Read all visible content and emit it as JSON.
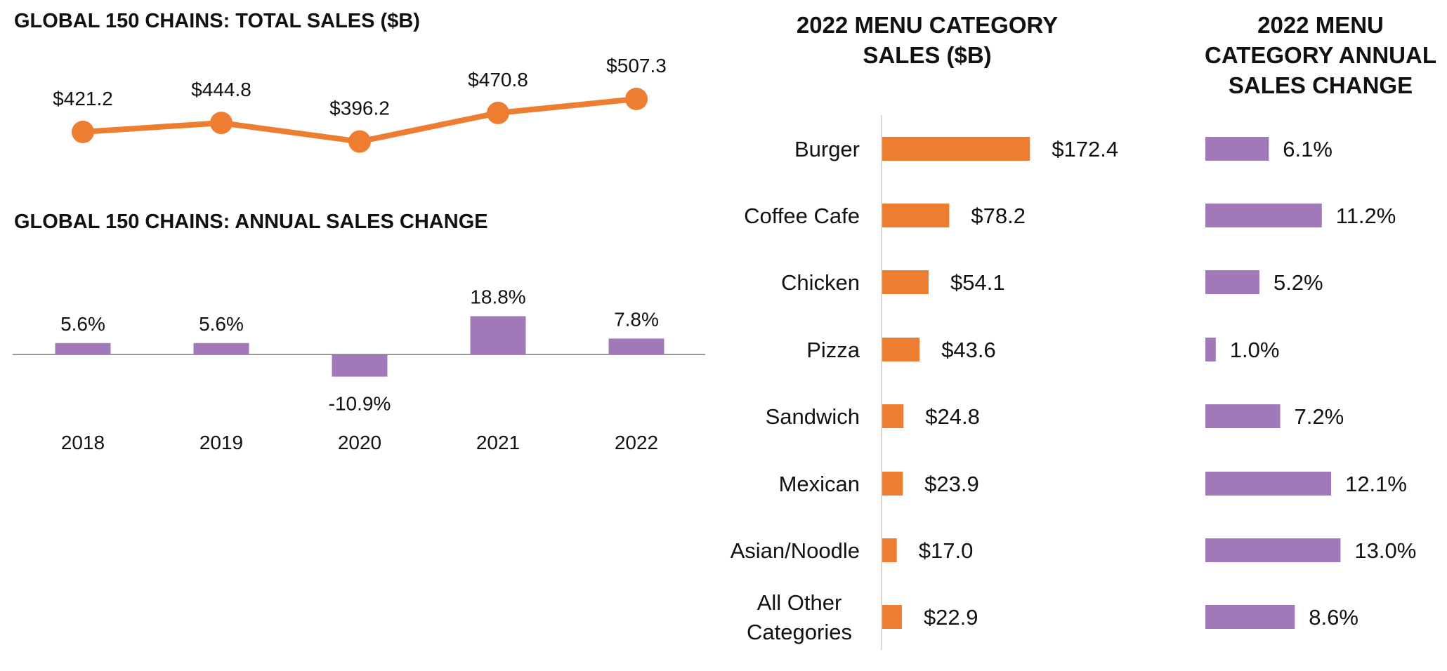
{
  "colors": {
    "orange": "#ED7D31",
    "purple": "#A279B8",
    "axis": "#9A9A9A",
    "axis_light": "#D9D9D9",
    "text": "#111111"
  },
  "chart_data": [
    {
      "id": "total-sales",
      "type": "line",
      "title": "GLOBAL 150 CHAINS: TOTAL SALES ($B)",
      "x": [
        "2018",
        "2019",
        "2020",
        "2021",
        "2022"
      ],
      "values": [
        421.2,
        444.8,
        396.2,
        470.8,
        507.3
      ],
      "labels": [
        "$421.2",
        "$444.8",
        "$396.2",
        "$470.8",
        "$507.3"
      ],
      "xlabel": "",
      "ylabel": "",
      "grid": false,
      "legend": "none"
    },
    {
      "id": "annual-change",
      "type": "bar",
      "title": "GLOBAL 150 CHAINS: ANNUAL SALES CHANGE",
      "categories": [
        "2018",
        "2019",
        "2020",
        "2021",
        "2022"
      ],
      "values": [
        5.6,
        5.6,
        -10.9,
        18.8,
        7.8
      ],
      "labels": [
        "5.6%",
        "5.6%",
        "-10.9%",
        "18.8%",
        "7.8%"
      ],
      "unit": "%",
      "xlabel": "",
      "ylabel": "",
      "grid": false,
      "legend": "none"
    },
    {
      "id": "category-sales",
      "type": "bar",
      "orientation": "horizontal",
      "title": "2022 MENU CATEGORY SALES ($B)",
      "title_lines": [
        "2022 MENU CATEGORY",
        "SALES ($B)"
      ],
      "categories": [
        "Burger",
        "Coffee Cafe",
        "Chicken",
        "Pizza",
        "Sandwich",
        "Mexican",
        "Asian/Noodle",
        "All Other Categories"
      ],
      "category_lines": [
        [
          "Burger"
        ],
        [
          "Coffee Cafe"
        ],
        [
          "Chicken"
        ],
        [
          "Pizza"
        ],
        [
          "Sandwich"
        ],
        [
          "Mexican"
        ],
        [
          "Asian/Noodle"
        ],
        [
          "All Other",
          "Categories"
        ]
      ],
      "values": [
        172.4,
        78.2,
        54.1,
        43.6,
        24.8,
        23.9,
        17.0,
        22.9
      ],
      "labels": [
        "$172.4",
        "$78.2",
        "$54.1",
        "$43.6",
        "$24.8",
        "$23.9",
        "$17.0",
        "$22.9"
      ],
      "grid": false,
      "legend": "none"
    },
    {
      "id": "category-change",
      "type": "bar",
      "orientation": "horizontal",
      "title": "2022 MENU CATEGORY ANNUAL SALES CHANGE",
      "title_lines": [
        "2022 MENU",
        "CATEGORY ANNUAL",
        "SALES CHANGE"
      ],
      "categories": [
        "Burger",
        "Coffee Cafe",
        "Chicken",
        "Pizza",
        "Sandwich",
        "Mexican",
        "Asian/Noodle",
        "All Other Categories"
      ],
      "values": [
        6.1,
        11.2,
        5.2,
        1.0,
        7.2,
        12.1,
        13.0,
        8.6
      ],
      "labels": [
        "6.1%",
        "11.2%",
        "5.2%",
        "1.0%",
        "7.2%",
        "12.1%",
        "13.0%",
        "8.6%"
      ],
      "unit": "%",
      "grid": false,
      "legend": "none"
    }
  ]
}
